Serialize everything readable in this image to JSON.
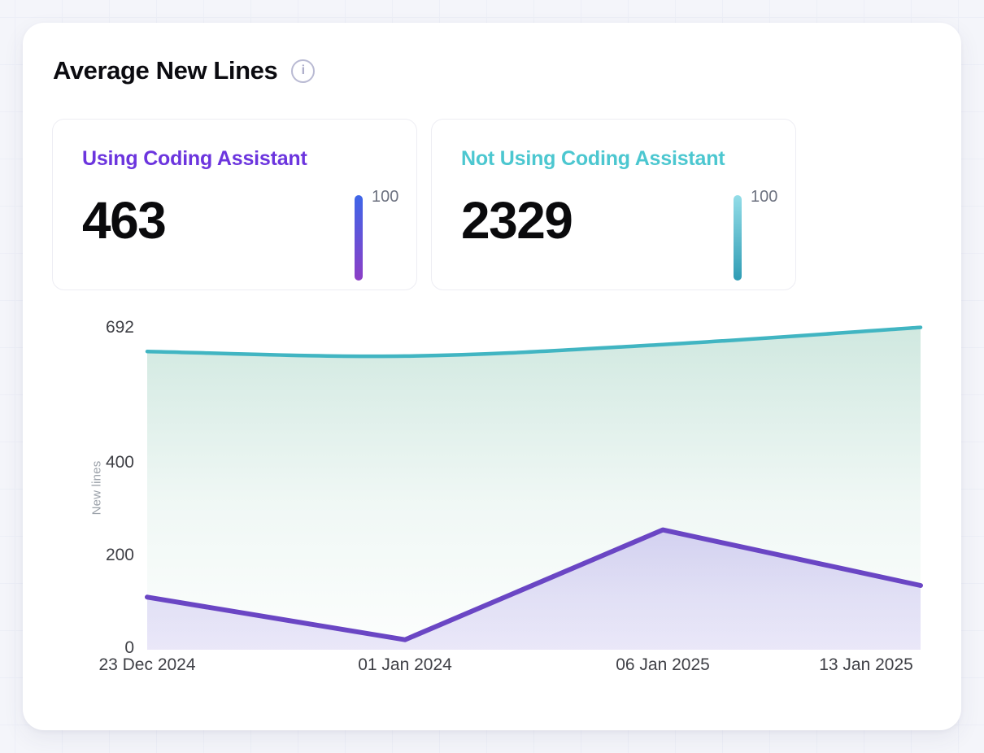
{
  "card": {
    "title": "Average New Lines"
  },
  "stats": [
    {
      "label": "Using Coding Assistant",
      "value": "463",
      "scale_label": "100",
      "accent": "#6c35de",
      "bar_top": "#3e66e8",
      "bar_bottom": "#8c3ec6"
    },
    {
      "label": "Not Using Coding Assistant",
      "value": "2329",
      "scale_label": "100",
      "accent": "#4cc7d0",
      "bar_top": "#93dde8",
      "bar_bottom": "#2f9cb4"
    }
  ],
  "chart_data": {
    "type": "area",
    "x": [
      "23 Dec 2024",
      "01 Jan 2024",
      "06 Jan 2025",
      "13 Jan 2025"
    ],
    "series": [
      {
        "name": "Not Using Coding Assistant",
        "values": [
          640,
          630,
          655,
          692
        ],
        "color": "#41b5c2",
        "line_width": 4.5,
        "smooth": true,
        "fill_from": "rgba(109,184,158,0.32)",
        "fill_mid": "rgba(109,184,158,0.10)",
        "fill_to": "rgba(109,184,158,0.02)"
      },
      {
        "name": "Using Coding Assistant",
        "values": [
          110,
          18,
          255,
          135
        ],
        "color": "#6a46c4",
        "line_width": 6,
        "smooth": false,
        "fill_from": "rgba(122,96,222,0.26)",
        "fill_mid": "rgba(122,96,222,0.18)",
        "fill_to": "rgba(122,96,222,0.14)"
      }
    ],
    "title": "Average New Lines",
    "xlabel": "",
    "ylabel": "New lines",
    "yticks": [
      692,
      400,
      200,
      0
    ],
    "ylim": [
      0,
      692
    ],
    "grid": false,
    "legend_position": "none"
  }
}
